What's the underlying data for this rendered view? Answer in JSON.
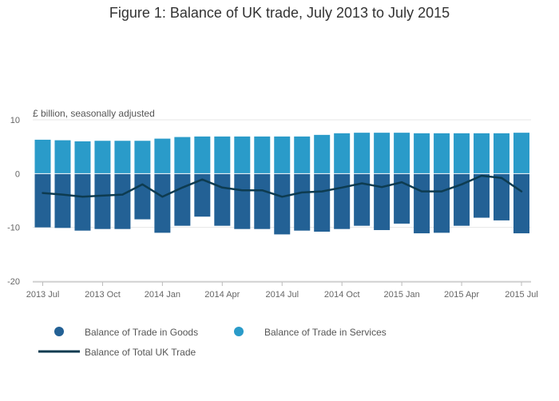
{
  "page": {
    "title": "Figure 1: Balance of UK trade, July 2013 to July 2015",
    "unit_label": "£ billion, seasonally adjusted"
  },
  "colors": {
    "goods": "#236195",
    "services": "#2a9bc9",
    "total": "#0d3b50",
    "grid": "#e6e6e6",
    "axis_text": "#666666"
  },
  "chart_data": {
    "type": "bar",
    "stacked": true,
    "title": "Figure 1: Balance of UK trade, July 2013 to July 2015",
    "ylabel": "£ billion, seasonally adjusted",
    "xlabel": "",
    "ylim": [
      -20,
      10
    ],
    "yticks": [
      10,
      0,
      -10,
      -20
    ],
    "grid": true,
    "legend_position": "bottom",
    "categories": [
      "2013 Jul",
      "2013 Aug",
      "2013 Sep",
      "2013 Oct",
      "2013 Nov",
      "2013 Dec",
      "2014 Jan",
      "2014 Feb",
      "2014 Mar",
      "2014 Apr",
      "2014 May",
      "2014 Jun",
      "2014 Jul",
      "2014 Aug",
      "2014 Sep",
      "2014 Oct",
      "2014 Nov",
      "2014 Dec",
      "2015 Jan",
      "2015 Feb",
      "2015 Mar",
      "2015 Apr",
      "2015 May",
      "2015 Jun",
      "2015 Jul"
    ],
    "tick_labels": [
      {
        "index": 0,
        "label": "2013 Jul"
      },
      {
        "index": 3,
        "label": "2013 Oct"
      },
      {
        "index": 6,
        "label": "2014 Jan"
      },
      {
        "index": 9,
        "label": "2014 Apr"
      },
      {
        "index": 12,
        "label": "2014 Jul"
      },
      {
        "index": 15,
        "label": "2014 Oct"
      },
      {
        "index": 18,
        "label": "2015 Jan"
      },
      {
        "index": 21,
        "label": "2015 Apr"
      },
      {
        "index": 24,
        "label": "2015 Jul"
      }
    ],
    "series": [
      {
        "name": "Balance of Trade in Goods",
        "kind": "bar",
        "values": [
          -10.0,
          -10.1,
          -10.6,
          -10.3,
          -10.3,
          -8.5,
          -11.0,
          -9.7,
          -8.0,
          -9.7,
          -10.3,
          -10.3,
          -11.3,
          -10.6,
          -10.8,
          -10.3,
          -9.7,
          -10.5,
          -9.3,
          -11.1,
          -11.0,
          -9.7,
          -8.2,
          -8.7,
          -11.1
        ]
      },
      {
        "name": "Balance of Trade in Services",
        "kind": "bar",
        "values": [
          6.3,
          6.2,
          6.0,
          6.1,
          6.1,
          6.1,
          6.5,
          6.8,
          6.9,
          6.9,
          6.9,
          6.9,
          6.9,
          6.9,
          7.2,
          7.5,
          7.6,
          7.6,
          7.6,
          7.5,
          7.5,
          7.5,
          7.5,
          7.5,
          7.6
        ]
      },
      {
        "name": "Balance of Total UK Trade",
        "kind": "line",
        "values": [
          -3.6,
          -3.9,
          -4.3,
          -4.1,
          -3.9,
          -2.0,
          -4.3,
          -2.6,
          -1.1,
          -2.6,
          -3.1,
          -3.1,
          -4.3,
          -3.5,
          -3.3,
          -2.6,
          -1.8,
          -2.5,
          -1.6,
          -3.3,
          -3.3,
          -2.0,
          -0.4,
          -0.8,
          -3.3
        ]
      }
    ]
  }
}
